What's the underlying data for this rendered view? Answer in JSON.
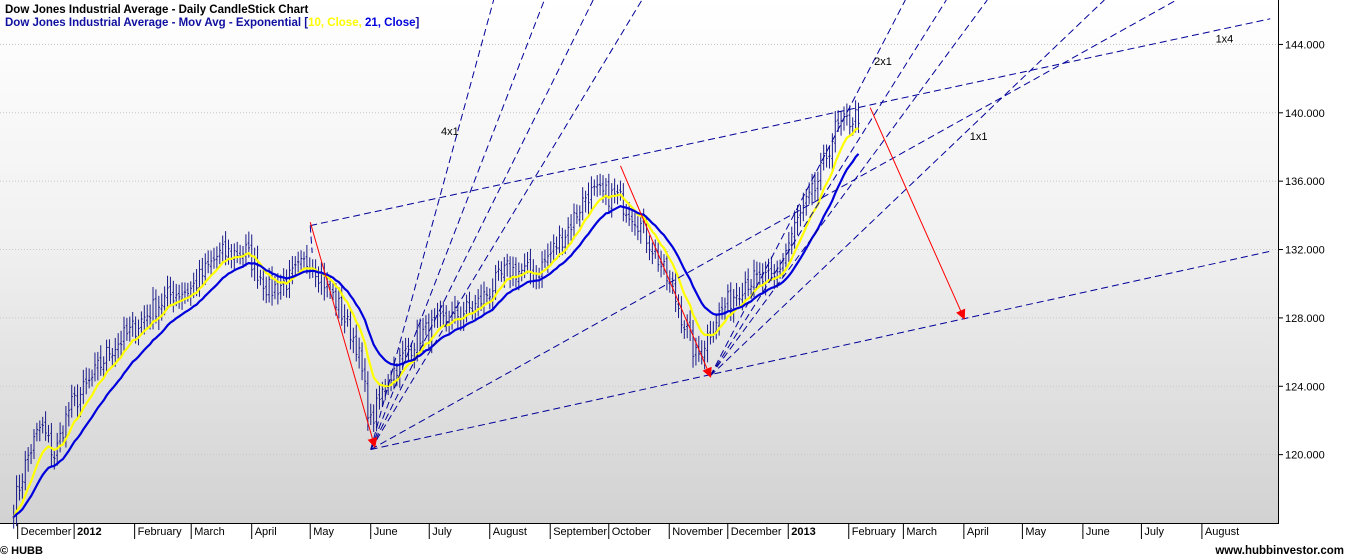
{
  "chart_data": {
    "type": "candlestick",
    "title": "Dow Jones Industrial Average - Daily CandleStick Chart",
    "indicator": {
      "prefix": "Dow Jones Industrial Average - Mov Avg - Exponential [",
      "fast": "10, Close,",
      "slow": "21, Close",
      "suffix": "]"
    },
    "ylim": [
      116.0,
      146.6
    ],
    "y_ticks": [
      "120.000",
      "124.000",
      "128.000",
      "132.000",
      "136.000",
      "140.000",
      "144.000"
    ],
    "x_months": [
      {
        "label": "December",
        "bold": false
      },
      {
        "label": "2012",
        "bold": true
      },
      {
        "label": "February",
        "bold": false
      },
      {
        "label": "March",
        "bold": false
      },
      {
        "label": "April",
        "bold": false
      },
      {
        "label": "May",
        "bold": false
      },
      {
        "label": "June",
        "bold": false
      },
      {
        "label": "July",
        "bold": false
      },
      {
        "label": "August",
        "bold": false
      },
      {
        "label": "September",
        "bold": false
      },
      {
        "label": "October",
        "bold": false
      },
      {
        "label": "November",
        "bold": false
      },
      {
        "label": "December",
        "bold": false
      },
      {
        "label": "2013",
        "bold": true
      },
      {
        "label": "February",
        "bold": false
      },
      {
        "label": "March",
        "bold": false
      },
      {
        "label": "April",
        "bold": false
      },
      {
        "label": "May",
        "bold": false
      },
      {
        "label": "June",
        "bold": false
      },
      {
        "label": "July",
        "bold": false
      },
      {
        "label": "August",
        "bold": false
      }
    ],
    "close_path": [
      [
        "2011-12-01",
        117.0
      ],
      [
        "2011-12-08",
        119.8
      ],
      [
        "2011-12-15",
        121.7
      ],
      [
        "2011-12-22",
        119.9
      ],
      [
        "2011-12-29",
        122.6
      ],
      [
        "2012-01-09",
        124.2
      ],
      [
        "2012-01-19",
        126.1
      ],
      [
        "2012-01-30",
        127.2
      ],
      [
        "2012-02-09",
        128.4
      ],
      [
        "2012-02-20",
        129.4
      ],
      [
        "2012-03-01",
        129.7
      ],
      [
        "2012-03-15",
        131.7
      ],
      [
        "2012-03-29",
        131.9
      ],
      [
        "2012-04-10",
        129.6
      ],
      [
        "2012-04-20",
        130.2
      ],
      [
        "2012-05-01",
        131.5
      ],
      [
        "2012-05-15",
        128.8
      ],
      [
        "2012-05-25",
        126.4
      ],
      [
        "2012-06-01",
        121.8
      ],
      [
        "2012-06-10",
        124.5
      ],
      [
        "2012-06-25",
        126.9
      ],
      [
        "2012-07-10",
        127.9
      ],
      [
        "2012-07-25",
        128.7
      ],
      [
        "2012-08-10",
        130.8
      ],
      [
        "2012-08-25",
        130.6
      ],
      [
        "2012-09-10",
        133.2
      ],
      [
        "2012-09-20",
        135.3
      ],
      [
        "2012-10-05",
        135.1
      ],
      [
        "2012-10-15",
        133.9
      ],
      [
        "2012-10-25",
        131.8
      ],
      [
        "2012-11-05",
        128.9
      ],
      [
        "2012-11-15",
        125.6
      ],
      [
        "2012-11-25",
        128.0
      ],
      [
        "2012-12-10",
        130.2
      ],
      [
        "2012-12-25",
        130.2
      ],
      [
        "2013-01-05",
        133.5
      ],
      [
        "2013-01-15",
        135.6
      ],
      [
        "2013-01-25",
        139.0
      ],
      [
        "2013-02-06",
        139.9
      ]
    ],
    "candles": {
      "count": 292,
      "seed": 7,
      "spread": 0.35
    },
    "ema_periods": [
      10,
      21
    ],
    "colors": {
      "candle": "#1a1a8a",
      "ema_fast": "#ffff00",
      "ema_slow": "#0000dd",
      "trend": "#00009a",
      "arrow": "#ff0000",
      "tick_text": "#000000"
    },
    "fan_annotations": [
      {
        "text": "4x1",
        "date": "2012-07-07",
        "value": 138.7
      },
      {
        "text": "2x1",
        "date": "2013-02-14",
        "value": 142.8
      },
      {
        "text": "1x4",
        "date": "2013-08-08",
        "value": 144.1
      },
      {
        "text": "1x1",
        "date": "2013-04-04",
        "value": 138.4
      }
    ],
    "trend_lines": [
      {
        "name": "upper-channel",
        "from": [
          "2012-05-01",
          133.4
        ],
        "to": [
          "2013-09-05",
          145.5
        ]
      },
      {
        "name": "lower-channel",
        "from": [
          "2012-06-01",
          120.3
        ],
        "to": [
          "2013-09-05",
          131.9
        ]
      },
      {
        "name": "may-top-connector",
        "from": [
          "2012-05-01",
          133.4
        ],
        "to": [
          "2012-05-02",
          131.8
        ]
      },
      {
        "name": "june-fan-1",
        "from": [
          "2012-06-01",
          120.3
        ],
        "to": [
          "2012-08-29",
          146.6
        ]
      },
      {
        "name": "june-fan-2",
        "from": [
          "2012-06-01",
          120.3
        ],
        "to": [
          "2012-09-23",
          146.6
        ]
      },
      {
        "name": "june-fan-3",
        "from": [
          "2012-06-01",
          120.3
        ],
        "to": [
          "2012-10-18",
          146.6
        ]
      },
      {
        "name": "june-fan-4",
        "from": [
          "2012-06-01",
          120.3
        ],
        "to": [
          "2013-07-19",
          146.6
        ]
      },
      {
        "name": "june-fan-5",
        "from": [
          "2012-06-01",
          120.3
        ],
        "to": [
          "2012-08-03",
          146.6
        ]
      },
      {
        "name": "november-fan-1",
        "from": [
          "2012-11-22",
          124.6
        ],
        "to": [
          "2013-04-13",
          146.6
        ]
      },
      {
        "name": "november-fan-2",
        "from": [
          "2012-11-22",
          124.6
        ],
        "to": [
          "2013-03-23",
          146.6
        ]
      },
      {
        "name": "november-fan-3",
        "from": [
          "2012-11-22",
          124.6
        ],
        "to": [
          "2013-03-02",
          146.6
        ]
      },
      {
        "name": "november-fan-4",
        "from": [
          "2012-11-22",
          124.6
        ],
        "to": [
          "2013-06-12",
          146.6
        ]
      }
    ],
    "arrows": [
      {
        "from": [
          "2012-05-01",
          133.6
        ],
        "to": [
          "2012-06-03",
          120.5
        ]
      },
      {
        "from": [
          "2012-10-07",
          136.9
        ],
        "to": [
          "2012-11-22",
          124.6
        ]
      },
      {
        "from": [
          "2013-02-12",
          140.3
        ],
        "to": [
          "2013-04-01",
          128.0
        ]
      }
    ]
  },
  "footer": {
    "copyright": "© HUBB",
    "website": "www.hubbinvestor.com"
  }
}
